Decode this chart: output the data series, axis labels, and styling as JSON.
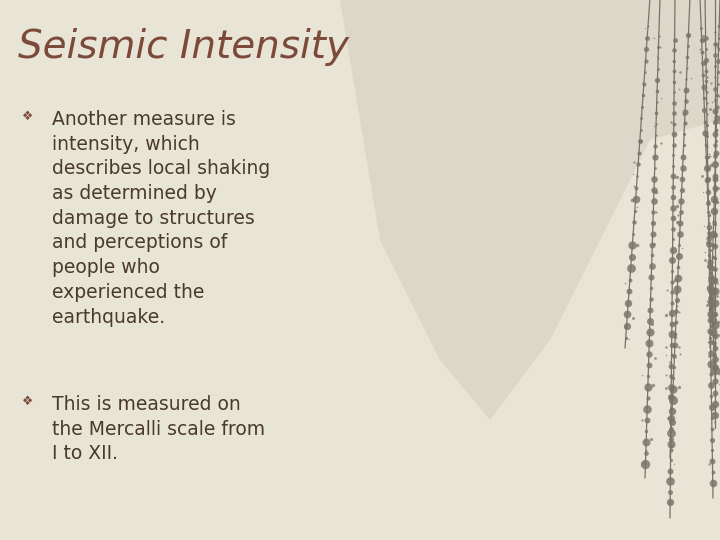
{
  "title": "Seismic Intensity",
  "title_color": "#7B4A3A",
  "title_fontsize": 28,
  "title_style": "italic",
  "title_font": "Georgia",
  "bg_color": "#E8E4D6",
  "bullet_color": "#4A3A2A",
  "bullet_fontsize": 13.5,
  "bullet_font": "Georgia",
  "bullet_marker": "❖",
  "bullet_marker_color": "#7B4A3A",
  "bullet1": "Another measure is\nintensity, which\ndescribes local shaking\nas determined by\ndamage to structures\nand perceptions of\npeople who\nexperienced the\nearthquake.",
  "bullet2": "This is measured on\nthe Mercalli scale from\nI to XII.",
  "branch_color": "#7A7268",
  "mountain_color": "#C8C5B8"
}
